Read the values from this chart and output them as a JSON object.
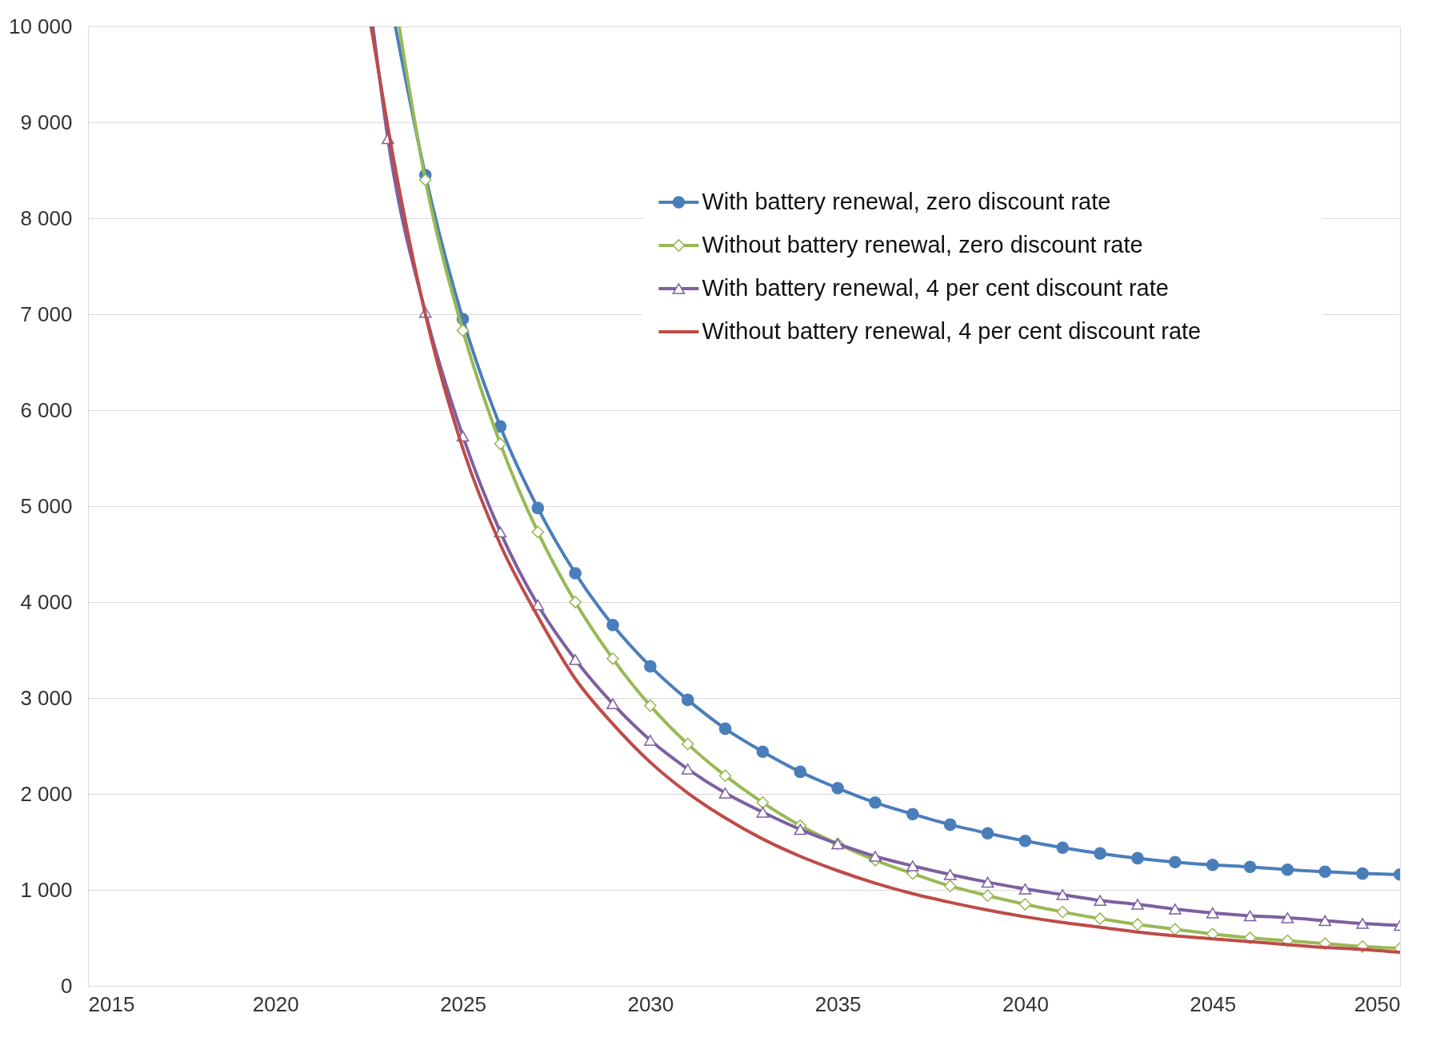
{
  "chart_data": {
    "type": "line",
    "ylim": [
      0,
      10000
    ],
    "xlim": [
      2015,
      2050
    ],
    "yticks": [
      {
        "value": 0,
        "label": "0"
      },
      {
        "value": 1000,
        "label": "1 000"
      },
      {
        "value": 2000,
        "label": "2 000"
      },
      {
        "value": 3000,
        "label": "3 000"
      },
      {
        "value": 4000,
        "label": "4 000"
      },
      {
        "value": 5000,
        "label": "5 000"
      },
      {
        "value": 6000,
        "label": "6 000"
      },
      {
        "value": 7000,
        "label": "7 000"
      },
      {
        "value": 8000,
        "label": "8 000"
      },
      {
        "value": 9000,
        "label": "9 000"
      },
      {
        "value": 10000,
        "label": "10 000"
      }
    ],
    "xticks": [
      2015,
      2020,
      2025,
      2030,
      2035,
      2040,
      2045,
      2050
    ],
    "grid": "y",
    "legend": "top right",
    "line_style": "solid",
    "series": [
      {
        "name": "With battery renewal, zero discount rate",
        "color": "#4a7ebb",
        "marker": "circle",
        "x": [
          2023.2,
          2024,
          2025,
          2026,
          2027,
          2028,
          2029,
          2030,
          2031,
          2032,
          2033,
          2034,
          2035,
          2036,
          2037,
          2038,
          2039,
          2040,
          2041,
          2042,
          2043,
          2044,
          2045,
          2046,
          2047,
          2048,
          2049,
          2050
        ],
        "values": [
          10000,
          8450,
          6950,
          5830,
          4980,
          4300,
          3760,
          3330,
          2980,
          2680,
          2440,
          2230,
          2060,
          1910,
          1790,
          1680,
          1590,
          1510,
          1440,
          1380,
          1330,
          1290,
          1260,
          1240,
          1210,
          1190,
          1170,
          1160
        ]
      },
      {
        "name": "Without battery renewal, zero discount rate",
        "color": "#98b954",
        "marker": "diamond",
        "x": [
          2023.3,
          2024,
          2025,
          2026,
          2027,
          2028,
          2029,
          2030,
          2031,
          2032,
          2033,
          2034,
          2035,
          2036,
          2037,
          2038,
          2039,
          2040,
          2041,
          2042,
          2043,
          2044,
          2045,
          2046,
          2047,
          2048,
          2049,
          2050
        ],
        "values": [
          10000,
          8400,
          6830,
          5650,
          4730,
          4000,
          3410,
          2920,
          2520,
          2190,
          1910,
          1670,
          1480,
          1310,
          1170,
          1040,
          940,
          850,
          770,
          700,
          640,
          590,
          540,
          500,
          470,
          440,
          410,
          390
        ]
      },
      {
        "name": "With battery renewal, 4 per cent discount rate",
        "color": "#7d60a0",
        "marker": "triangle",
        "x": [
          2022.6,
          2023,
          2024,
          2025,
          2026,
          2027,
          2028,
          2029,
          2030,
          2031,
          2032,
          2033,
          2034,
          2035,
          2036,
          2037,
          2038,
          2039,
          2040,
          2041,
          2042,
          2043,
          2044,
          2045,
          2046,
          2047,
          2048,
          2049,
          2050
        ],
        "values": [
          10000,
          8830,
          7020,
          5730,
          4730,
          3970,
          3400,
          2940,
          2560,
          2260,
          2010,
          1810,
          1630,
          1480,
          1350,
          1250,
          1160,
          1080,
          1010,
          950,
          890,
          850,
          800,
          760,
          730,
          710,
          680,
          650,
          630
        ]
      },
      {
        "name": "Without battery renewal, 4 per cent discount rate",
        "color": "#be4b48",
        "marker": "none",
        "x": [
          2022.55,
          2023,
          2024,
          2025,
          2026,
          2027,
          2028,
          2029,
          2030,
          2031,
          2032,
          2033,
          2034,
          2035,
          2036,
          2037,
          2038,
          2039,
          2040,
          2041,
          2042,
          2043,
          2044,
          2045,
          2046,
          2047,
          2048,
          2049,
          2050
        ],
        "values": [
          10000,
          8950,
          7000,
          5600,
          4600,
          3850,
          3200,
          2730,
          2330,
          2010,
          1750,
          1530,
          1350,
          1200,
          1070,
          960,
          870,
          790,
          720,
          660,
          610,
          560,
          520,
          490,
          460,
          430,
          400,
          380,
          350
        ]
      }
    ]
  }
}
